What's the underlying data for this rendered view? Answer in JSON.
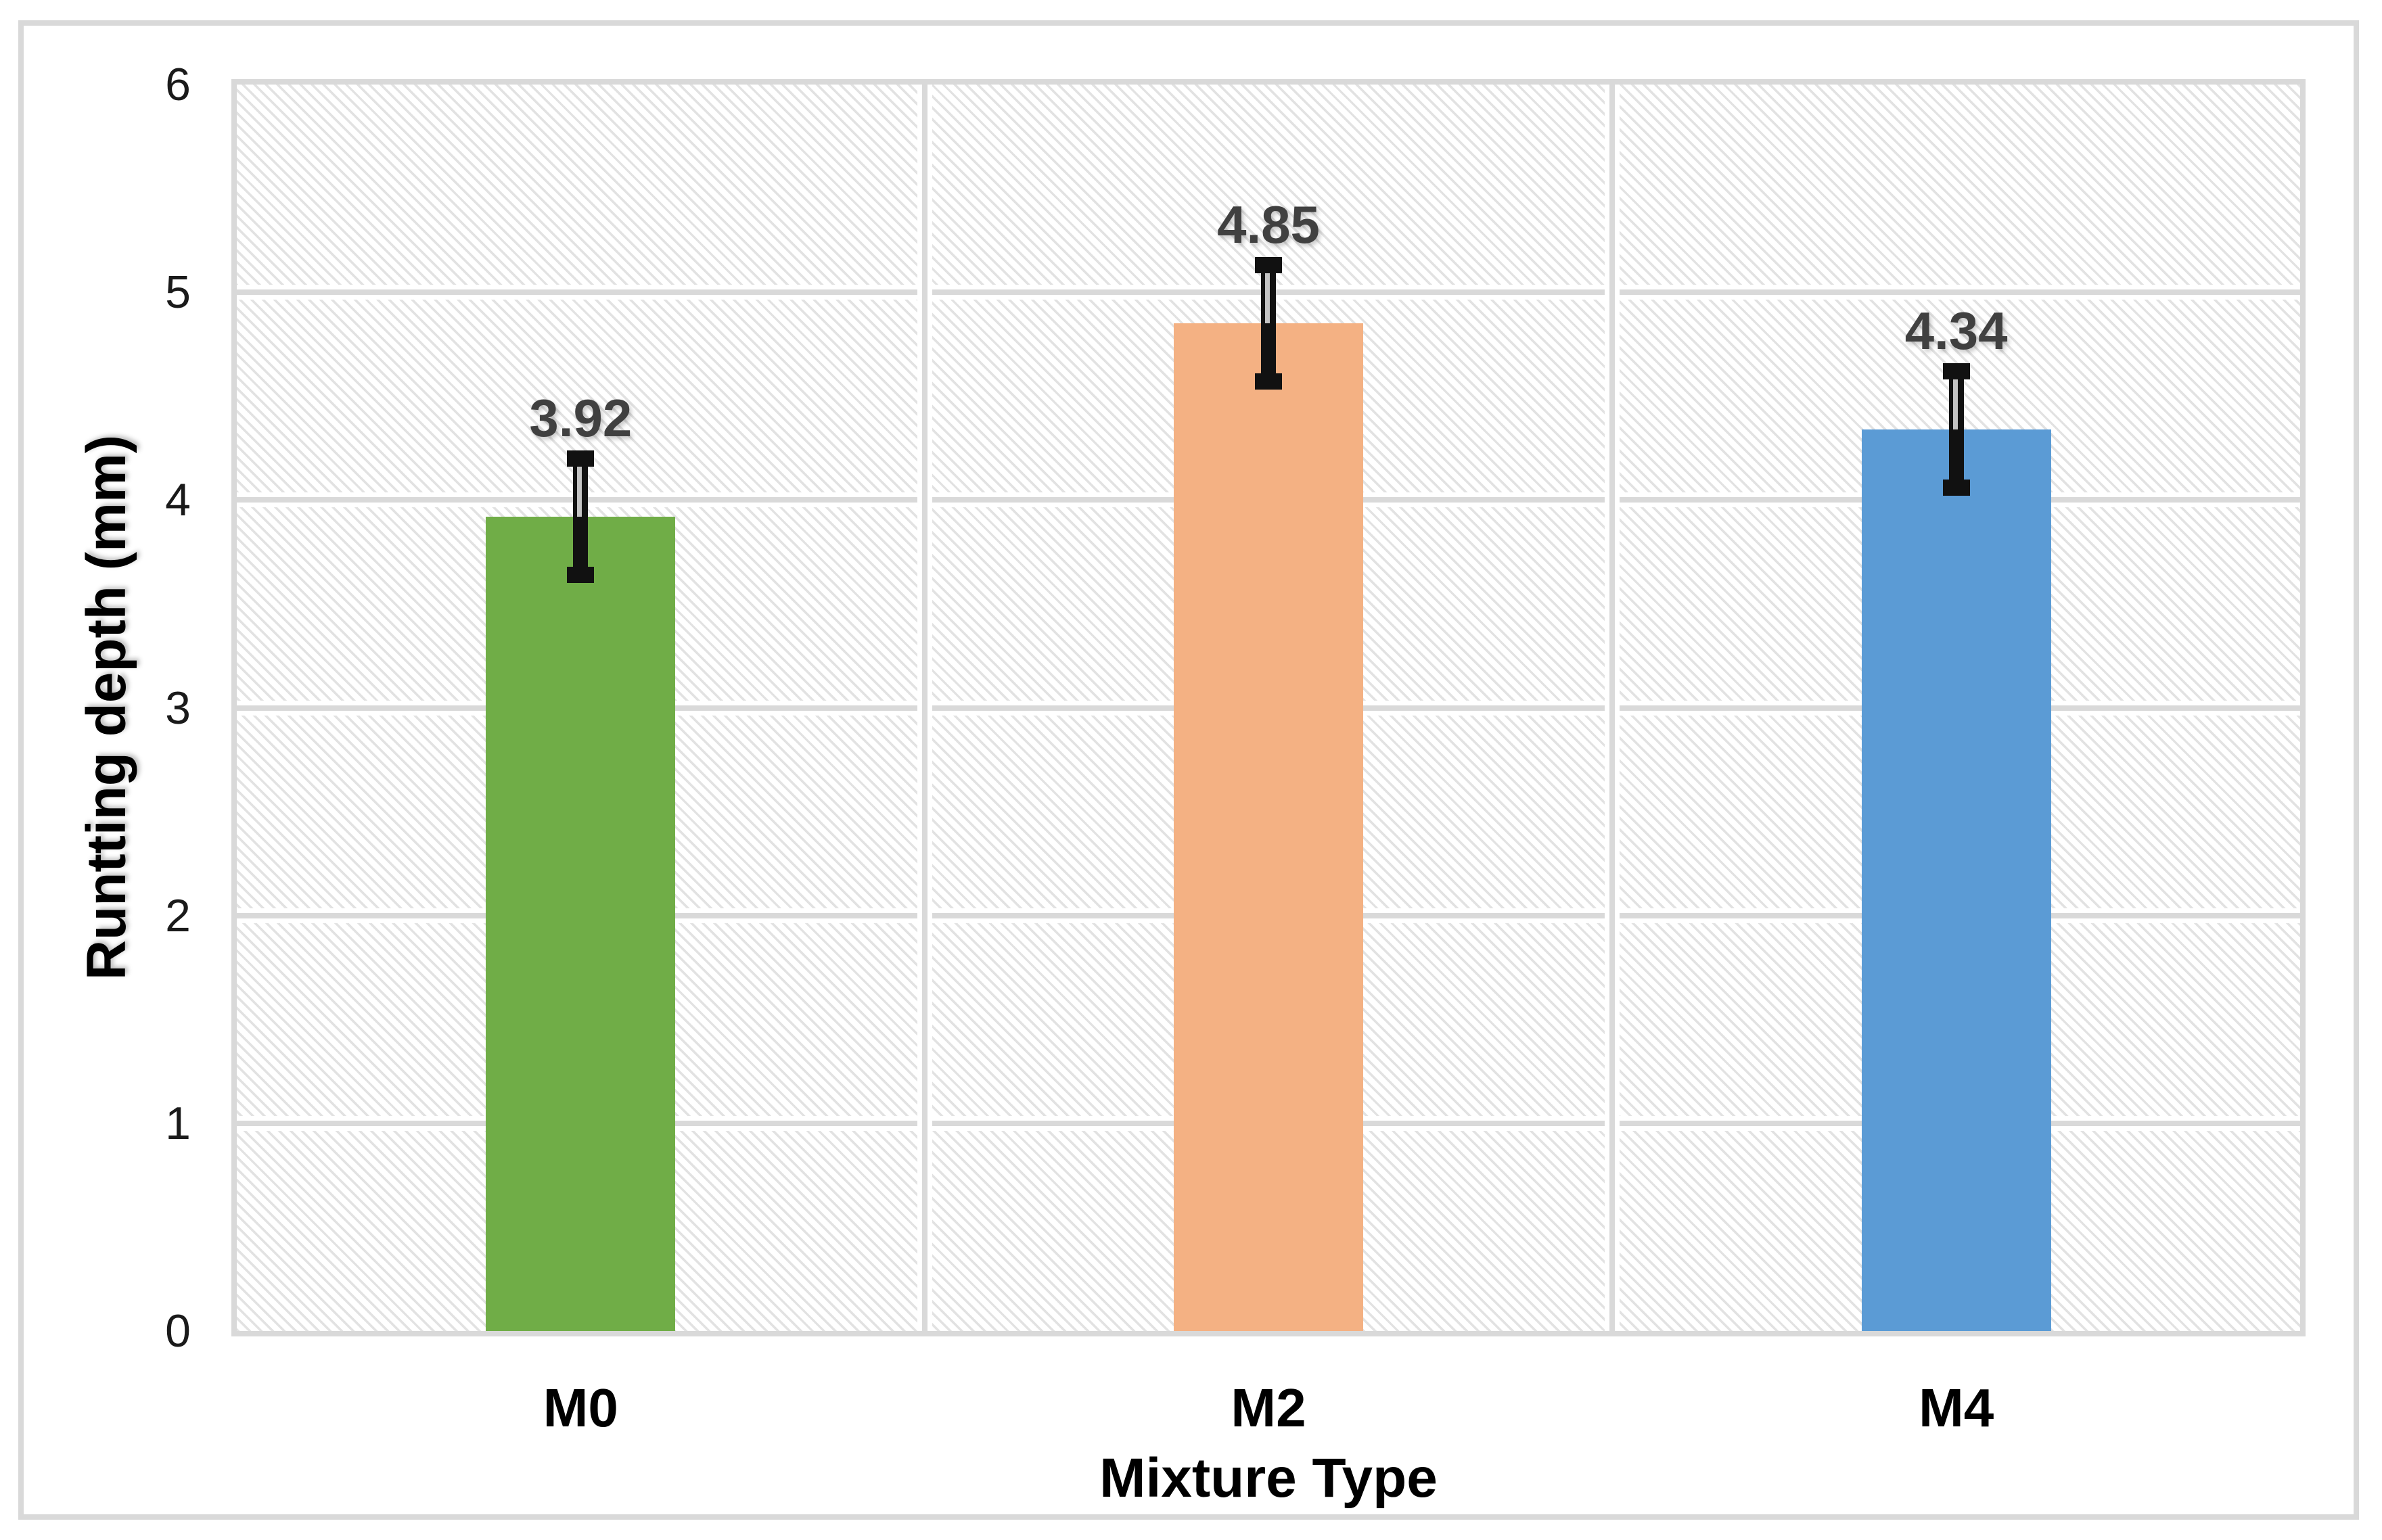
{
  "chart_data": {
    "type": "bar",
    "title": "",
    "xlabel": "Mixture Type",
    "ylabel": "Runtting depth (mm)",
    "categories": [
      "M0",
      "M2",
      "M4"
    ],
    "values": [
      3.92,
      4.85,
      4.34
    ],
    "data_labels": [
      "3.92",
      "4.85",
      "4.34"
    ],
    "error_plus": [
      0.28,
      0.28,
      0.28
    ],
    "error_minus": [
      0.28,
      0.28,
      0.28
    ],
    "bar_colors": [
      "#70AD47",
      "#F4B183",
      "#5B9BD5"
    ],
    "ylim": [
      0,
      6
    ],
    "yticks": [
      "0",
      "1",
      "2",
      "3",
      "4",
      "5",
      "6"
    ],
    "grid": true,
    "legend": false,
    "plot_background": "diagonal-hatch"
  },
  "style": {
    "gridline_color": "#D9D9D9",
    "plot_border_color": "#D9D9D9",
    "frame_border_color": "#D9D9D9",
    "hatch_line_color": "#E2E2E2",
    "error_bar_color": "#111111",
    "leader_line_color": "#C4C4C4",
    "data_label_color": "#404040",
    "axis_text_color": "#000000"
  }
}
